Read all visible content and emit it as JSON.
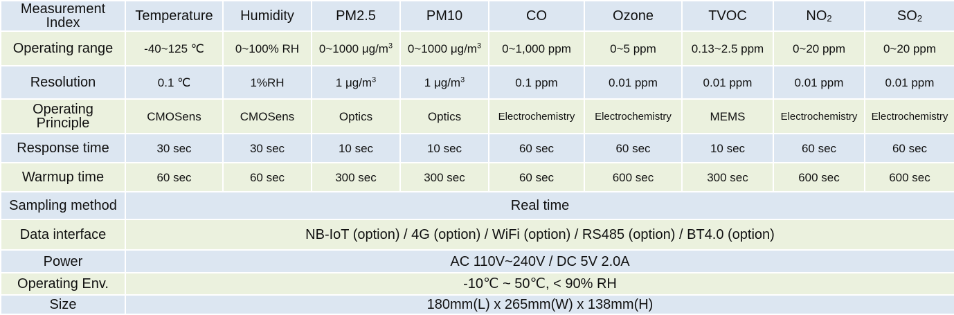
{
  "header": {
    "corner_label": "Measurement Index",
    "columns": [
      "Temperature",
      "Humidity",
      "PM2.5",
      "PM10",
      "CO",
      "Ozone",
      "TVOC",
      "NO",
      "SO"
    ],
    "column_subscripts": [
      "",
      "",
      "",
      "",
      "",
      "",
      "",
      "2",
      "2"
    ]
  },
  "rows": [
    {
      "label": "Operating range",
      "values": [
        "-40~125 ℃",
        "0~100% RH",
        "0~1000 μg/m",
        "0~1000 μg/m",
        "0~1,000 ppm",
        "0~5 ppm",
        "0.13~2.5 ppm",
        "0~20 ppm",
        "0~20 ppm"
      ],
      "superscripts": [
        "",
        "",
        "3",
        "3",
        "",
        "",
        "",
        "",
        ""
      ]
    },
    {
      "label": "Resolution",
      "values": [
        "0.1 ℃",
        "1%RH",
        "1  μg/m",
        "1  μg/m",
        "0.1 ppm",
        "0.01 ppm",
        "0.01 ppm",
        "0.01 ppm",
        "0.01 ppm"
      ],
      "superscripts": [
        "",
        "",
        "3",
        "3",
        "",
        "",
        "",
        "",
        ""
      ]
    },
    {
      "label": "Operating Principle",
      "values": [
        "CMOSens",
        "CMOSens",
        "Optics",
        "Optics",
        "Electrochemistry",
        "Electrochemistry",
        "MEMS",
        "Electrochemistry",
        "Electrochemistry"
      ]
    },
    {
      "label": "Response time",
      "values": [
        "30 sec",
        "30 sec",
        "10 sec",
        "10 sec",
        "60 sec",
        "60 sec",
        "10 sec",
        "60 sec",
        "60 sec"
      ]
    },
    {
      "label": "Warmup time",
      "values": [
        "60 sec",
        "60 sec",
        "300 sec",
        "300 sec",
        "60 sec",
        "600 sec",
        "300 sec",
        "600 sec",
        "600 sec"
      ]
    }
  ],
  "wide_rows": [
    {
      "label": "Sampling method",
      "value": "Real time"
    },
    {
      "label": "Data interface",
      "value": "NB-IoT (option) / 4G (option) / WiFi (option) / RS485 (option) / BT4.0 (option)"
    },
    {
      "label": "Power",
      "value": "AC 110V~240V / DC 5V 2.0A"
    },
    {
      "label": "Operating Env.",
      "value": "-10℃ ~ 50℃, < 90% RH"
    },
    {
      "label": "Size",
      "value": "180mm(L) x 265mm(W) x 138mm(H)"
    }
  ],
  "colors": {
    "green_band": "#ebf1de",
    "blue_band": "#dce6f1"
  }
}
